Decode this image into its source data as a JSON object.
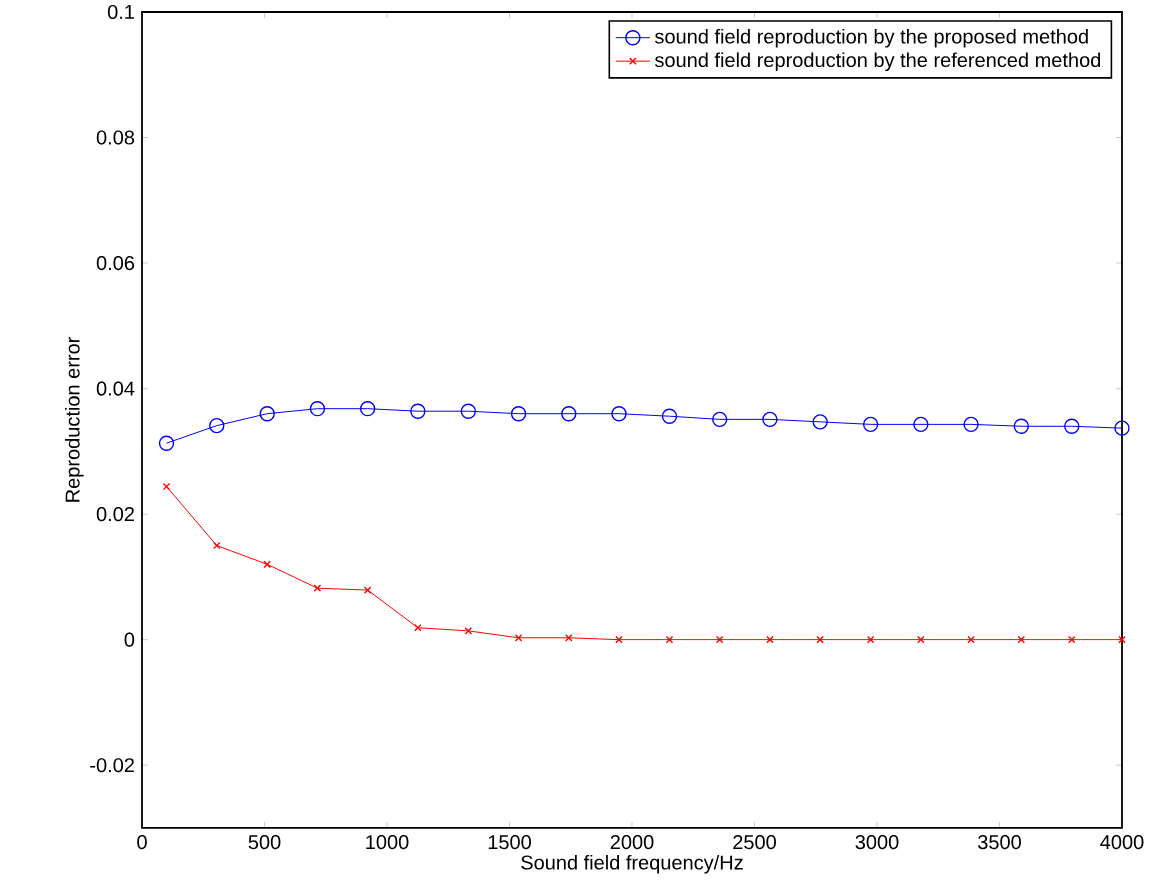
{
  "chart_data": {
    "type": "line",
    "xlabel": "Sound field frequency/Hz",
    "ylabel": "Reproduction error",
    "x": [
      100,
      305,
      511,
      716,
      921,
      1126,
      1332,
      1537,
      1742,
      1947,
      2153,
      2358,
      2563,
      2768,
      2974,
      3179,
      3384,
      3589,
      3795,
      4000
    ],
    "series": [
      {
        "name": "sound field reproduction by the proposed method",
        "color": "#0000ff",
        "marker": "circle",
        "values": [
          0.0313,
          0.0341,
          0.036,
          0.0368,
          0.0368,
          0.0364,
          0.0364,
          0.036,
          0.036,
          0.036,
          0.0356,
          0.0351,
          0.0351,
          0.0347,
          0.0343,
          0.0343,
          0.0343,
          0.034,
          0.034,
          0.0337
        ]
      },
      {
        "name": "sound field reproduction by the referenced method",
        "color": "#ff0000",
        "marker": "cross",
        "values": [
          0.0244,
          0.015,
          0.012,
          0.0082,
          0.0079,
          0.0019,
          0.0014,
          0.0003,
          0.0003,
          0,
          0,
          0,
          0,
          0,
          0,
          0,
          0,
          0,
          0,
          0
        ]
      }
    ],
    "xlim": [
      0,
      4000
    ],
    "xticks": [
      0,
      500,
      1000,
      1500,
      2000,
      2500,
      3000,
      3500,
      4000
    ],
    "ylim": [
      -0.03,
      0.1
    ],
    "yticks": [
      -0.02,
      0,
      0.02,
      0.04,
      0.06,
      0.08,
      0.1
    ],
    "legend": "top right",
    "line_style": "solid",
    "grid": false
  }
}
